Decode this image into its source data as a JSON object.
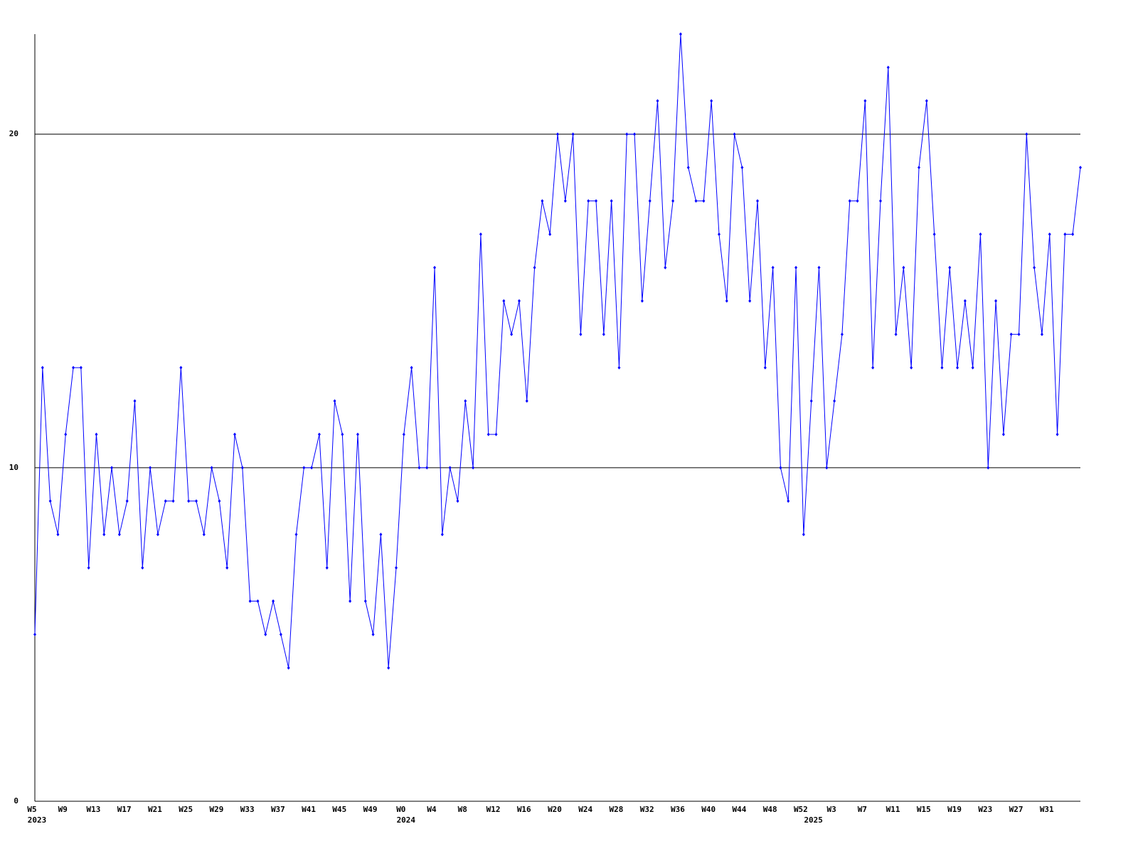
{
  "chart_data": {
    "type": "line",
    "color": "#0000ff",
    "grid": true,
    "ylim": [
      0,
      23
    ],
    "yticks": [
      0,
      10,
      20
    ],
    "categories": [
      "W5",
      null,
      null,
      null,
      "W9",
      null,
      null,
      null,
      "W13",
      null,
      null,
      null,
      "W17",
      null,
      null,
      null,
      "W21",
      null,
      null,
      null,
      "W25",
      null,
      null,
      null,
      "W29",
      null,
      null,
      null,
      "W33",
      null,
      null,
      null,
      "W37",
      null,
      null,
      null,
      "W41",
      null,
      null,
      null,
      "W45",
      null,
      null,
      null,
      "W49",
      null,
      null,
      null,
      "W0",
      null,
      null,
      null,
      "W4",
      null,
      null,
      null,
      "W8",
      null,
      null,
      null,
      "W12",
      null,
      null,
      null,
      "W16",
      null,
      null,
      null,
      "W20",
      null,
      null,
      null,
      "W24",
      null,
      null,
      null,
      "W28",
      null,
      null,
      null,
      "W32",
      null,
      null,
      null,
      "W36",
      null,
      null,
      null,
      "W40",
      null,
      null,
      null,
      "W44",
      null,
      null,
      null,
      "W48",
      null,
      null,
      null,
      "W52",
      null,
      null,
      null,
      "W3",
      null,
      null,
      null,
      "W7",
      null,
      null,
      null,
      "W11",
      null,
      null,
      null,
      "W15",
      null,
      null,
      null,
      "W19",
      null,
      null,
      null,
      "W23",
      null,
      null,
      null,
      "W27",
      null,
      null,
      null,
      "W31",
      null,
      null,
      null,
      null
    ],
    "years": [
      "2023",
      null,
      null,
      null,
      null,
      null,
      null,
      null,
      null,
      null,
      null,
      null,
      null,
      null,
      null,
      null,
      null,
      null,
      null,
      null,
      null,
      null,
      null,
      null,
      null,
      null,
      null,
      null,
      null,
      null,
      null,
      null,
      null,
      null,
      null,
      null,
      null,
      null,
      null,
      null,
      null,
      null,
      null,
      null,
      null,
      null,
      null,
      null,
      "2024",
      null,
      null,
      null,
      null,
      null,
      null,
      null,
      null,
      null,
      null,
      null,
      null,
      null,
      null,
      null,
      null,
      null,
      null,
      null,
      null,
      null,
      null,
      null,
      null,
      null,
      null,
      null,
      null,
      null,
      null,
      null,
      null,
      null,
      null,
      null,
      null,
      null,
      null,
      null,
      null,
      null,
      null,
      null,
      null,
      null,
      null,
      null,
      null,
      null,
      null,
      null,
      null,
      "2025",
      null,
      null,
      null,
      null,
      null,
      null,
      null,
      null,
      null,
      null,
      null,
      null,
      null,
      null,
      null,
      null,
      null,
      null,
      null,
      null,
      null,
      null,
      null,
      null,
      null,
      null,
      null,
      null,
      null,
      null,
      null,
      null,
      null,
      null,
      null
    ],
    "values": [
      5,
      13,
      9,
      8,
      11,
      13,
      13,
      7,
      11,
      8,
      10,
      8,
      9,
      12,
      7,
      10,
      8,
      9,
      9,
      13,
      9,
      9,
      8,
      10,
      9,
      7,
      11,
      10,
      6,
      6,
      5,
      6,
      5,
      4,
      8,
      10,
      10,
      11,
      7,
      12,
      11,
      6,
      11,
      6,
      5,
      8,
      4,
      7,
      11,
      13,
      10,
      10,
      16,
      8,
      10,
      9,
      12,
      10,
      17,
      11,
      11,
      15,
      14,
      15,
      12,
      16,
      18,
      17,
      20,
      18,
      20,
      14,
      18,
      18,
      14,
      18,
      13,
      20,
      20,
      15,
      18,
      21,
      16,
      18,
      23,
      19,
      18,
      18,
      21,
      17,
      15,
      20,
      19,
      15,
      18,
      13,
      16,
      10,
      9,
      16,
      8,
      12,
      16,
      10,
      12,
      14,
      18,
      18,
      21,
      13,
      18,
      22,
      14,
      16,
      13,
      19,
      21,
      17,
      13,
      16,
      13,
      15,
      13,
      17,
      10,
      15,
      11,
      14,
      14,
      20,
      16,
      14,
      17,
      11,
      17,
      17,
      19
    ]
  }
}
